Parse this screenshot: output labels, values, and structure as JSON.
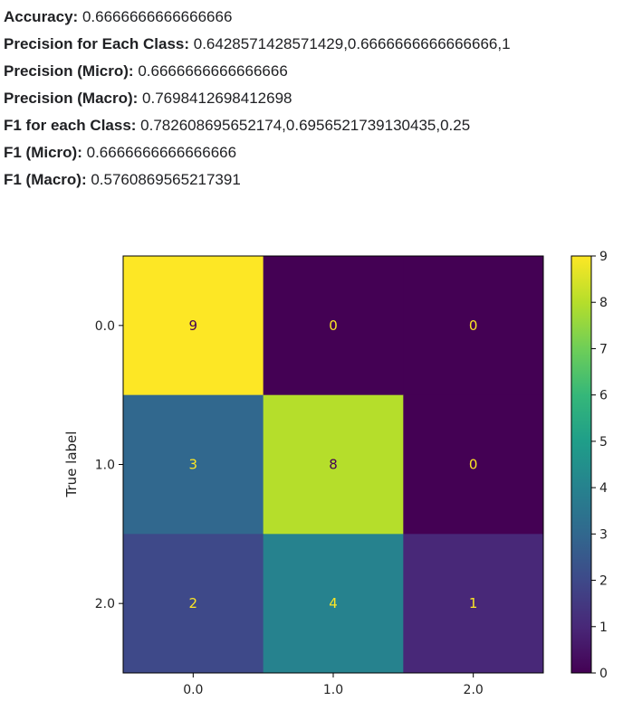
{
  "metrics": [
    {
      "label": "Accuracy:",
      "value": "0.6666666666666666"
    },
    {
      "label": "Precision for Each Class:",
      "value": "0.6428571428571429,0.6666666666666666,1"
    },
    {
      "label": "Precision (Micro):",
      "value": "0.6666666666666666"
    },
    {
      "label": "Precision (Macro):",
      "value": "0.7698412698412698"
    },
    {
      "label": "F1 for each Class:",
      "value": "0.782608695652174,0.6956521739130435,0.25"
    },
    {
      "label": "F1 (Micro):",
      "value": "0.6666666666666666"
    },
    {
      "label": "F1 (Macro):",
      "value": "0.5760869565217391"
    }
  ],
  "chart_data": {
    "type": "heatmap",
    "title": "",
    "xlabel": "",
    "ylabel": "True label",
    "x_categories": [
      "0.0",
      "1.0",
      "2.0"
    ],
    "y_categories": [
      "0.0",
      "1.0",
      "2.0"
    ],
    "matrix": [
      [
        9,
        0,
        0
      ],
      [
        3,
        8,
        0
      ],
      [
        2,
        4,
        1
      ]
    ],
    "colormap": "viridis",
    "colorbar_range": [
      0,
      9
    ],
    "colorbar_ticks": [
      "0",
      "1",
      "2",
      "3",
      "4",
      "5",
      "6",
      "7",
      "8",
      "9"
    ],
    "cell_text_light": "#fde725",
    "cell_text_dark": "#440154",
    "grid": false
  }
}
